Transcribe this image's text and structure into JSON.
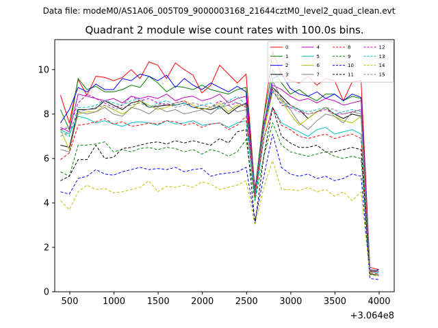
{
  "suptitle": "Data file: modeM0/AS1A06_005T09_9000003168_21644cztM0_level2_quad_clean.evt",
  "chart_data": {
    "type": "line",
    "title": "Quadrant 2 module wise count rates with 100.0s bins.",
    "xlabel": "",
    "ylabel": "",
    "x_offset_label": "+3.064e8",
    "xlim": [
      330,
      4170
    ],
    "ylim": [
      0,
      11.35
    ],
    "xticks": [
      500,
      1000,
      1500,
      2000,
      2500,
      3000,
      3500,
      4000
    ],
    "yticks": [
      0,
      2,
      4,
      6,
      8,
      10
    ],
    "grid": false,
    "legend_position": "upper right",
    "x": [
      395,
      495,
      595,
      695,
      795,
      895,
      995,
      1095,
      1195,
      1295,
      1395,
      1495,
      1595,
      1695,
      1795,
      1895,
      1995,
      2095,
      2195,
      2295,
      2395,
      2495,
      2595,
      2695,
      2795,
      2895,
      2995,
      3095,
      3195,
      3295,
      3395,
      3495,
      3595,
      3695,
      3795,
      3895,
      3995
    ],
    "series": [
      {
        "name": "0",
        "color": "#ff0000",
        "dash": "solid",
        "values": [
          8.85,
          7.6,
          9.55,
          8.85,
          9.7,
          9.65,
          9.5,
          9.65,
          10.0,
          9.6,
          10.35,
          10.2,
          9.6,
          10.3,
          10.0,
          9.75,
          8.95,
          9.3,
          10.2,
          9.8,
          9.4,
          9.8,
          4.5,
          7.9,
          10.8,
          9.8,
          9.5,
          9.4,
          9.7,
          9.3,
          9.6,
          9.5,
          8.6,
          9.45,
          9.5,
          1.1,
          1.0
        ]
      },
      {
        "name": "1",
        "color": "#008000",
        "dash": "solid",
        "values": [
          8.2,
          7.3,
          9.6,
          9.1,
          9.25,
          9.0,
          9.0,
          9.1,
          9.3,
          9.2,
          9.7,
          9.4,
          9.0,
          9.25,
          9.2,
          9.1,
          9.3,
          9.1,
          9.0,
          8.9,
          9.1,
          9.2,
          4.6,
          7.9,
          10.0,
          9.4,
          8.9,
          9.1,
          8.8,
          8.6,
          8.9,
          8.9,
          8.6,
          8.8,
          8.7,
          1.0,
          0.95
        ]
      },
      {
        "name": "2",
        "color": "#0000ff",
        "dash": "solid",
        "values": [
          7.6,
          8.2,
          9.2,
          9.0,
          9.35,
          9.1,
          9.1,
          9.6,
          9.5,
          9.8,
          9.7,
          9.5,
          9.75,
          9.2,
          9.6,
          9.3,
          9.1,
          9.4,
          9.2,
          9.0,
          9.25,
          9.0,
          4.4,
          7.5,
          9.6,
          9.8,
          9.15,
          8.9,
          8.8,
          9.0,
          8.7,
          8.9,
          8.6,
          8.9,
          8.75,
          0.9,
          1.0
        ]
      },
      {
        "name": "3",
        "color": "#000000",
        "dash": "solid",
        "values": [
          6.6,
          6.5,
          8.2,
          8.2,
          8.25,
          8.6,
          8.4,
          8.2,
          8.5,
          8.6,
          8.3,
          8.35,
          8.4,
          8.4,
          8.5,
          8.3,
          8.25,
          8.2,
          8.35,
          8.0,
          8.3,
          8.5,
          4.6,
          7.3,
          9.2,
          8.8,
          8.4,
          8.2,
          7.8,
          8.1,
          8.3,
          8.0,
          7.8,
          8.0,
          7.9,
          0.95,
          0.9
        ]
      },
      {
        "name": "4",
        "color": "#bf00bf",
        "dash": "solid",
        "values": [
          7.4,
          7.2,
          8.9,
          8.8,
          8.7,
          8.6,
          8.7,
          8.5,
          8.8,
          8.7,
          8.8,
          8.7,
          8.9,
          8.6,
          8.75,
          8.8,
          8.6,
          8.7,
          8.9,
          8.5,
          8.7,
          8.8,
          4.5,
          7.6,
          9.3,
          9.1,
          8.8,
          8.6,
          8.7,
          8.5,
          8.7,
          8.6,
          8.4,
          8.5,
          8.6,
          1.0,
          0.9
        ]
      },
      {
        "name": "5",
        "color": "#00bfbf",
        "dash": "solid",
        "values": [
          7.3,
          7.1,
          7.9,
          7.8,
          7.6,
          7.7,
          7.55,
          7.45,
          7.6,
          7.65,
          7.6,
          7.5,
          7.7,
          7.55,
          7.6,
          7.7,
          7.5,
          7.55,
          7.6,
          7.4,
          7.6,
          7.7,
          4.1,
          6.9,
          8.3,
          7.6,
          7.4,
          7.2,
          7.0,
          7.3,
          7.4,
          7.1,
          7.2,
          7.3,
          7.1,
          0.9,
          0.85
        ]
      },
      {
        "name": "6",
        "color": "#bfbf00",
        "dash": "solid",
        "values": [
          7.3,
          6.4,
          8.0,
          8.1,
          8.1,
          8.4,
          8.2,
          8.0,
          8.25,
          8.6,
          8.4,
          8.2,
          8.3,
          8.5,
          8.6,
          8.4,
          8.2,
          8.3,
          8.5,
          8.1,
          8.4,
          8.35,
          4.3,
          7.2,
          9.0,
          8.6,
          8.0,
          7.5,
          7.8,
          8.1,
          8.3,
          7.9,
          7.7,
          7.6,
          7.9,
          0.95,
          0.9
        ]
      },
      {
        "name": "7",
        "color": "#808080",
        "dash": "solid",
        "values": [
          6.4,
          6.3,
          8.1,
          8.0,
          8.1,
          8.3,
          8.0,
          7.9,
          8.3,
          8.2,
          8.0,
          8.3,
          8.1,
          8.2,
          8.0,
          8.1,
          8.2,
          8.0,
          8.3,
          8.4,
          8.1,
          8.2,
          4.3,
          7.3,
          9.5,
          8.7,
          8.2,
          7.6,
          7.3,
          7.7,
          8.0,
          7.9,
          7.6,
          8.1,
          8.0,
          0.9,
          0.9
        ]
      },
      {
        "name": "8",
        "color": "#ff0000",
        "dash": "dashed",
        "values": [
          5.95,
          6.25,
          7.5,
          7.55,
          7.65,
          7.8,
          7.55,
          7.65,
          7.45,
          7.5,
          7.6,
          7.55,
          7.7,
          7.65,
          7.5,
          7.6,
          7.4,
          7.55,
          7.6,
          7.3,
          7.5,
          7.9,
          4.4,
          6.9,
          8.3,
          7.5,
          7.3,
          7.0,
          6.9,
          7.0,
          7.1,
          6.9,
          7.0,
          7.1,
          6.9,
          0.85,
          0.8
        ]
      },
      {
        "name": "9",
        "color": "#008000",
        "dash": "dashed",
        "values": [
          5.4,
          5.2,
          6.6,
          6.6,
          6.65,
          6.75,
          6.3,
          6.4,
          6.3,
          6.45,
          6.5,
          6.4,
          6.5,
          6.45,
          6.3,
          6.4,
          6.2,
          6.4,
          6.3,
          6.1,
          6.3,
          6.85,
          4.1,
          6.1,
          7.6,
          6.6,
          6.3,
          6.2,
          6.1,
          6.2,
          6.3,
          6.1,
          6.0,
          6.1,
          6.0,
          0.8,
          0.75
        ]
      },
      {
        "name": "10",
        "color": "#0000ff",
        "dash": "dashed",
        "values": [
          4.5,
          4.4,
          5.1,
          5.2,
          5.5,
          5.3,
          5.25,
          5.4,
          5.5,
          5.6,
          5.5,
          5.55,
          5.5,
          5.6,
          5.4,
          5.5,
          5.55,
          5.2,
          5.3,
          5.35,
          5.4,
          5.6,
          3.2,
          5.2,
          7.1,
          5.6,
          5.3,
          5.2,
          5.3,
          5.1,
          5.2,
          5.0,
          5.1,
          5.3,
          5.2,
          0.6,
          0.55
        ]
      },
      {
        "name": "11",
        "color": "#000000",
        "dash": "dashed",
        "values": [
          5.0,
          5.2,
          5.95,
          5.95,
          6.6,
          6.0,
          6.05,
          6.45,
          6.5,
          6.6,
          6.7,
          6.75,
          6.65,
          6.8,
          6.7,
          6.8,
          6.7,
          6.6,
          6.9,
          6.7,
          7.2,
          7.3,
          3.05,
          6.1,
          8.3,
          7.0,
          6.7,
          6.5,
          6.5,
          6.6,
          6.3,
          6.3,
          6.4,
          6.5,
          6.4,
          0.8,
          0.75
        ]
      },
      {
        "name": "12",
        "color": "#bf00bf",
        "dash": "dashed",
        "values": [
          7.3,
          7.4,
          8.5,
          8.9,
          8.7,
          8.5,
          8.3,
          8.4,
          8.8,
          8.6,
          8.7,
          8.5,
          8.4,
          8.5,
          8.6,
          8.3,
          8.4,
          8.3,
          8.6,
          8.4,
          8.5,
          8.3,
          4.4,
          7.4,
          9.1,
          8.4,
          8.3,
          8.1,
          8.0,
          8.1,
          8.2,
          8.0,
          8.0,
          8.1,
          8.2,
          0.95,
          0.9
        ]
      },
      {
        "name": "13",
        "color": "#00bfbf",
        "dash": "dashed",
        "values": [
          7.2,
          7.0,
          8.3,
          8.3,
          8.4,
          8.6,
          8.5,
          8.4,
          8.6,
          8.7,
          8.3,
          8.5,
          8.6,
          8.4,
          8.5,
          8.3,
          8.4,
          8.5,
          8.2,
          8.6,
          8.8,
          8.4,
          4.5,
          7.4,
          9.0,
          8.5,
          8.3,
          8.2,
          8.1,
          8.2,
          8.3,
          8.0,
          8.1,
          8.2,
          8.1,
          1.0,
          0.95
        ]
      },
      {
        "name": "14",
        "color": "#bfbf00",
        "dash": "dashed",
        "values": [
          4.1,
          3.7,
          4.5,
          4.8,
          4.6,
          4.65,
          4.45,
          4.5,
          4.6,
          4.7,
          5.0,
          4.5,
          4.75,
          4.7,
          4.8,
          4.7,
          4.95,
          4.85,
          4.6,
          4.7,
          4.8,
          5.0,
          3.0,
          4.7,
          5.9,
          4.6,
          4.6,
          4.55,
          4.7,
          4.5,
          4.6,
          4.3,
          4.5,
          4.1,
          4.5,
          0.75,
          0.7
        ]
      },
      {
        "name": "15",
        "color": "#808080",
        "dash": "dashed",
        "values": [
          7.0,
          7.2,
          8.1,
          8.2,
          8.3,
          8.4,
          8.2,
          8.3,
          8.4,
          8.5,
          8.3,
          8.4,
          8.5,
          8.3,
          8.4,
          8.5,
          8.4,
          8.3,
          8.4,
          8.6,
          8.5,
          8.4,
          4.5,
          7.5,
          9.2,
          8.6,
          8.4,
          8.2,
          8.0,
          8.1,
          8.3,
          8.2,
          8.0,
          8.1,
          8.2,
          1.0,
          0.95
        ]
      }
    ]
  }
}
